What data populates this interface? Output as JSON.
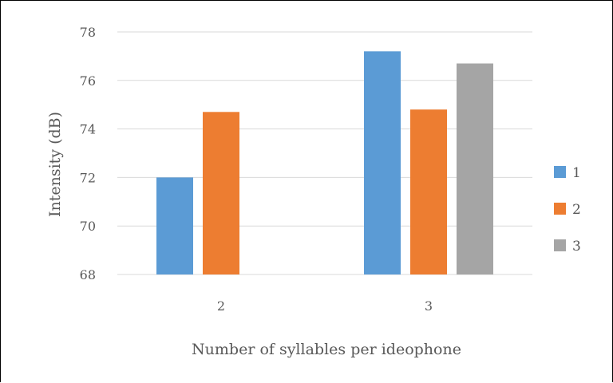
{
  "chart_data": {
    "type": "bar",
    "categories": [
      "2",
      "3"
    ],
    "series": [
      {
        "name": "1",
        "color": "#5B9BD5",
        "values": [
          72.0,
          77.2
        ]
      },
      {
        "name": "2",
        "color": "#ED7D31",
        "values": [
          74.7,
          74.8
        ]
      },
      {
        "name": "3",
        "color": "#A5A5A5",
        "values": [
          null,
          76.7
        ]
      }
    ],
    "title": "",
    "xlabel": "Number of syllables per ideophone",
    "ylabel": "Intensity (dB)",
    "ylim": [
      68,
      78
    ],
    "yticks": [
      "68",
      "70",
      "72",
      "74",
      "76",
      "78"
    ],
    "grid": true,
    "legend_position": "right"
  }
}
